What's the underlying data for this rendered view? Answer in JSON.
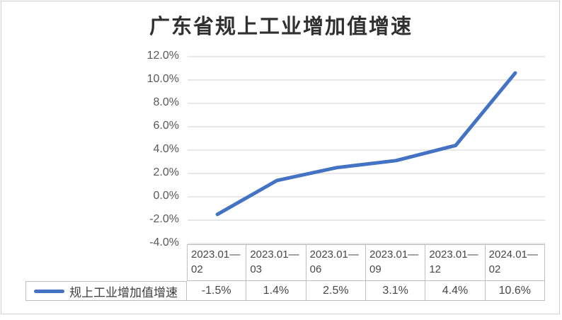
{
  "chart_data": {
    "type": "line",
    "title": "广东省规上工业增加值增速",
    "legend": "规上工业增加值增速",
    "categories": [
      "2023.01—02",
      "2023.01—03",
      "2023.01—06",
      "2023.01—09",
      "2023.01—12",
      "2024.01—02"
    ],
    "values": [
      -1.5,
      1.4,
      2.5,
      3.1,
      4.4,
      10.6
    ],
    "display_values": [
      "-1.5%",
      "1.4%",
      "2.5%",
      "3.1%",
      "4.4%",
      "10.6%"
    ],
    "y_ticks": [
      "12.0%",
      "10.0%",
      "8.0%",
      "6.0%",
      "4.0%",
      "2.0%",
      "0.0%",
      "-2.0%",
      "-4.0%"
    ],
    "ylim": [
      -4,
      12
    ],
    "y_step": 2,
    "grid": true,
    "legend_position": "data-table",
    "colors": {
      "line": "#4472C4",
      "gridline": "#D9D9D9",
      "table_border": "#BFBFBF",
      "tick_text": "#595959",
      "table_text": "#474747",
      "title_text": "#303030"
    }
  }
}
